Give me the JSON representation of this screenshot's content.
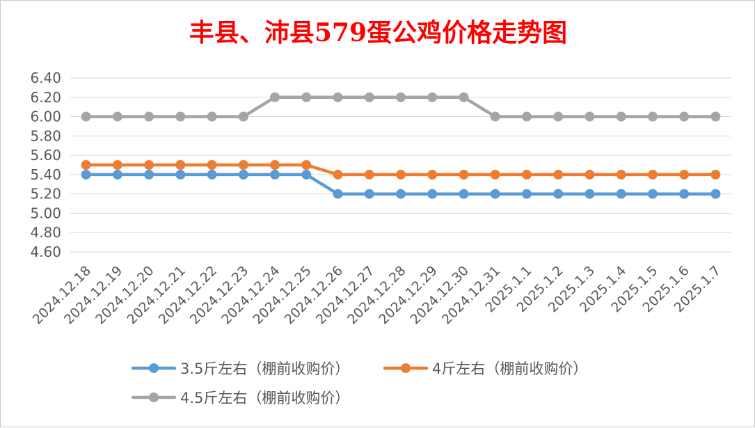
{
  "chart_data": {
    "type": "line",
    "title": "丰县、沛县579蛋公鸡价格走势图",
    "xlabel": "",
    "ylabel": "",
    "ylim": [
      4.6,
      6.4
    ],
    "yticks": [
      "6.40",
      "6.20",
      "6.00",
      "5.80",
      "5.60",
      "5.40",
      "5.20",
      "5.00",
      "4.80",
      "4.60"
    ],
    "categories": [
      "2024.12.18",
      "2024.12.19",
      "2024.12.20",
      "2024.12.21",
      "2024.12.22",
      "2024.12.23",
      "2024.12.24",
      "2024.12.25",
      "2024.12.26",
      "2024.12.27",
      "2024.12.28",
      "2024.12.29",
      "2024.12.30",
      "2024.12.31",
      "2025.1.1",
      "2025.1.2",
      "2025.1.3",
      "2025.1.4",
      "2025.1.5",
      "2025.1.6",
      "2025.1.7"
    ],
    "grid": true,
    "legend_position": "bottom",
    "series": [
      {
        "name": "3.5斤左右（棚前收购价）",
        "color": "#5b9bd5",
        "values": [
          5.4,
          5.4,
          5.4,
          5.4,
          5.4,
          5.4,
          5.4,
          5.4,
          5.2,
          5.2,
          5.2,
          5.2,
          5.2,
          5.2,
          5.2,
          5.2,
          5.2,
          5.2,
          5.2,
          5.2,
          5.2
        ]
      },
      {
        "name": "4斤左右（棚前收购价）",
        "color": "#ed7d31",
        "values": [
          5.5,
          5.5,
          5.5,
          5.5,
          5.5,
          5.5,
          5.5,
          5.5,
          5.4,
          5.4,
          5.4,
          5.4,
          5.4,
          5.4,
          5.4,
          5.4,
          5.4,
          5.4,
          5.4,
          5.4,
          5.4
        ]
      },
      {
        "name": "4.5斤左右（棚前收购价）",
        "color": "#a5a5a5",
        "values": [
          6.0,
          6.0,
          6.0,
          6.0,
          6.0,
          6.0,
          6.2,
          6.2,
          6.2,
          6.2,
          6.2,
          6.2,
          6.2,
          6.0,
          6.0,
          6.0,
          6.0,
          6.0,
          6.0,
          6.0,
          6.0
        ]
      }
    ]
  }
}
